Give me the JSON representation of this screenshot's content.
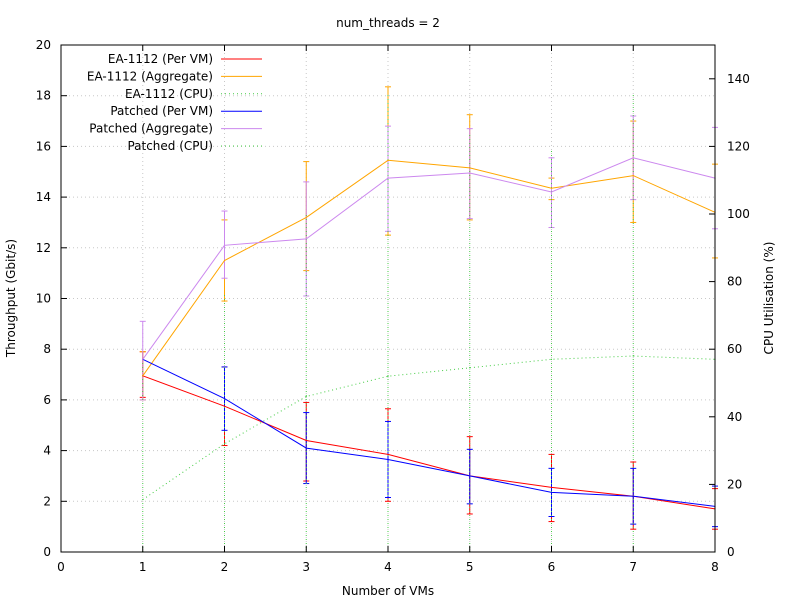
{
  "chart_data": {
    "type": "line",
    "title": "num_threads = 2",
    "xlabel": "Number of VMs",
    "ylabel": "Throughput (Gbit/s)",
    "y2label": "CPU Utilisation (%)",
    "x": [
      1,
      2,
      3,
      4,
      5,
      6,
      7,
      8
    ],
    "xlim": [
      0,
      8
    ],
    "ylim": [
      0,
      20
    ],
    "y2lim": [
      0,
      150
    ],
    "xticks": [
      "0",
      "1",
      "2",
      "3",
      "4",
      "5",
      "6",
      "7",
      "8"
    ],
    "yticks": [
      "0",
      "2",
      "4",
      "6",
      "8",
      "10",
      "12",
      "14",
      "16",
      "18",
      "20"
    ],
    "y2ticks": [
      "0",
      "20",
      "40",
      "60",
      "80",
      "100",
      "120",
      "140"
    ],
    "grid": true,
    "legend_position": "top-left",
    "series": [
      {
        "name": "EA-1112 (Per VM)",
        "axis": "left",
        "style": "solid",
        "color": "#ff0000",
        "values": [
          6.95,
          5.75,
          4.4,
          3.85,
          3.0,
          2.55,
          2.2,
          1.7
        ],
        "err_low": [
          6.1,
          4.2,
          2.8,
          2.0,
          1.5,
          1.2,
          0.9,
          0.9
        ],
        "err_high": [
          7.9,
          7.3,
          5.9,
          5.65,
          4.55,
          3.85,
          3.55,
          2.5
        ]
      },
      {
        "name": "EA-1112 (Aggregate)",
        "axis": "left",
        "style": "solid",
        "color": "#ffa500",
        "values": [
          6.95,
          11.5,
          13.2,
          15.45,
          15.15,
          14.35,
          14.85,
          13.4
        ],
        "err_low": [
          6.0,
          9.9,
          11.1,
          12.5,
          13.1,
          13.9,
          13.0,
          11.6
        ],
        "err_high": [
          7.9,
          13.1,
          15.4,
          18.35,
          17.25,
          14.75,
          17.0,
          15.3
        ]
      },
      {
        "name": "EA-1112 (CPU)",
        "axis": "right",
        "style": "dotted",
        "color": "#44cc44",
        "values": [
          0,
          0,
          0,
          0,
          0,
          0,
          0,
          0
        ],
        "err_low": [
          0,
          0,
          0,
          0,
          0,
          0,
          0,
          0
        ],
        "err_high": [
          0,
          0,
          0,
          0,
          0,
          0,
          0,
          0
        ]
      },
      {
        "name": "Patched (Per VM)",
        "axis": "left",
        "style": "solid",
        "color": "#0000ff",
        "values": [
          7.6,
          6.05,
          4.1,
          3.65,
          3.0,
          2.35,
          2.2,
          1.8
        ],
        "err_low": [
          7.6,
          4.8,
          2.7,
          2.15,
          1.9,
          1.4,
          1.1,
          1.0
        ],
        "err_high": [
          7.6,
          7.3,
          5.5,
          5.15,
          4.05,
          3.3,
          3.3,
          2.6
        ]
      },
      {
        "name": "Patched (Aggregate)",
        "axis": "left",
        "style": "solid",
        "color": "#cc88ee",
        "values": [
          7.6,
          12.1,
          12.35,
          14.75,
          14.95,
          14.2,
          15.55,
          14.75
        ],
        "err_low": [
          6.0,
          10.8,
          10.1,
          12.65,
          13.15,
          12.8,
          13.9,
          12.75
        ],
        "err_high": [
          9.1,
          13.45,
          14.6,
          16.8,
          16.7,
          15.55,
          17.2,
          16.75
        ]
      },
      {
        "name": "Patched (CPU)",
        "axis": "right",
        "style": "dotted",
        "color": "#44cc44",
        "values": [
          15.5,
          32,
          46,
          52,
          54.5,
          57,
          58,
          57
        ],
        "err_low": [
          0,
          0,
          0,
          0,
          0,
          0,
          0,
          0
        ],
        "err_high": [
          58,
          76,
          100,
          136,
          124,
          119,
          136,
          137
        ]
      }
    ]
  }
}
